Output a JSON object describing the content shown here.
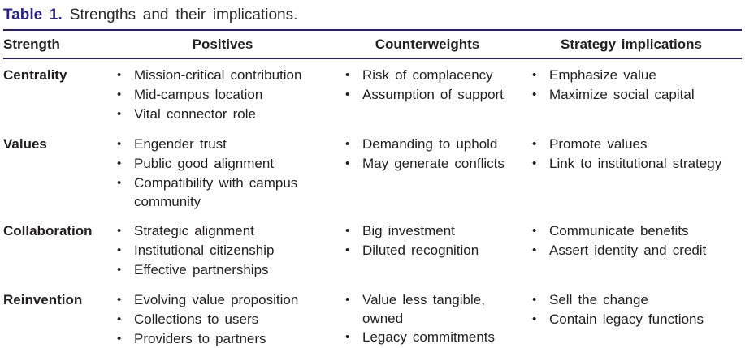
{
  "caption": {
    "label": "Table 1.",
    "text": "Strengths and their implications."
  },
  "colors": {
    "caption_accent": "#2a2382",
    "rule": "#262262",
    "body_text": "#231f20"
  },
  "table": {
    "columns": [
      "Strength",
      "Positives",
      "Counterweights",
      "Strategy implications"
    ],
    "rows": [
      {
        "strength": "Centrality",
        "positives": [
          "Mission-critical contribution",
          "Mid-campus location",
          "Vital connector role"
        ],
        "counterweights": [
          "Risk of complacency",
          "Assumption of support"
        ],
        "strategy": [
          "Emphasize value",
          "Maximize social capital"
        ]
      },
      {
        "strength": "Values",
        "positives": [
          "Engender trust",
          "Public good alignment",
          "Compatibility with campus community"
        ],
        "counterweights": [
          "Demanding to uphold",
          "May generate conflicts"
        ],
        "strategy": [
          "Promote values",
          "Link to institutional strategy"
        ]
      },
      {
        "strength": "Collaboration",
        "positives": [
          "Strategic alignment",
          "Institutional citizenship",
          "Effective partnerships"
        ],
        "counterweights": [
          "Big investment",
          "Diluted recognition"
        ],
        "strategy": [
          "Communicate benefits",
          "Assert identity and credit"
        ]
      },
      {
        "strength": "Reinvention",
        "positives": [
          "Evolving value proposition",
          "Collections to users",
          "Providers to partners"
        ],
        "counterweights": [
          "Value less tangible, owned",
          "Legacy commitments"
        ],
        "strategy": [
          "Sell the change",
          "Contain legacy functions"
        ]
      }
    ]
  }
}
